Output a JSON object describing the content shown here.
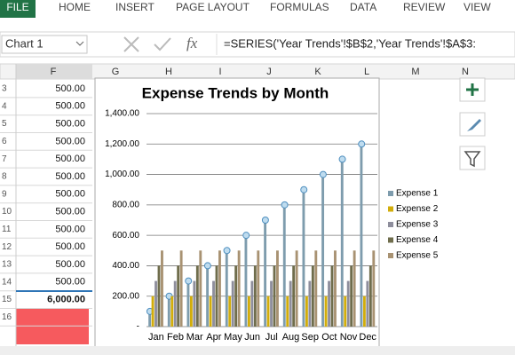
{
  "ribbon_tabs": [
    "FILE",
    "HOME",
    "INSERT",
    "PAGE LAYOUT",
    "FORMULAS",
    "DATA",
    "REVIEW",
    "VIEW"
  ],
  "name_box": "Chart 1",
  "fx": "fx",
  "formula": "=SERIES('Year Trends'!$B$2,'Year Trends'!$A$3:",
  "column_headers": [
    "F",
    "G",
    "H",
    "I",
    "J",
    "K",
    "L",
    "M",
    "N"
  ],
  "rows": [
    {
      "row": "3",
      "F": "500.00"
    },
    {
      "row": "4",
      "F": "500.00"
    },
    {
      "row": "5",
      "F": "500.00"
    },
    {
      "row": "6",
      "F": "500.00"
    },
    {
      "row": "7",
      "F": "500.00"
    },
    {
      "row": "8",
      "F": "500.00"
    },
    {
      "row": "9",
      "F": "500.00"
    },
    {
      "row": "10",
      "F": "500.00"
    },
    {
      "row": "11",
      "F": "500.00"
    },
    {
      "row": "12",
      "F": "500.00"
    },
    {
      "row": "13",
      "F": "500.00"
    },
    {
      "row": "14",
      "F": "500.00"
    },
    {
      "row": "15",
      "F": "6,000.00"
    },
    {
      "row": "16",
      "F": ""
    }
  ],
  "chart_data": {
    "type": "bar",
    "title": "Expense Trends by Month",
    "categories": [
      "Jan",
      "Feb",
      "Mar",
      "Apr",
      "May",
      "Jun",
      "Jul",
      "Aug",
      "Sep",
      "Oct",
      "Nov",
      "Dec"
    ],
    "series": [
      {
        "name": "Expense 1",
        "color": "#7e9cad",
        "values": [
          100,
          200,
          300,
          400,
          500,
          600,
          700,
          800,
          900,
          1000,
          1100,
          1200
        ]
      },
      {
        "name": "Expense 2",
        "color": "#d2ad0a",
        "values": [
          200,
          200,
          200,
          200,
          200,
          200,
          200,
          200,
          200,
          200,
          200,
          200
        ]
      },
      {
        "name": "Expense 3",
        "color": "#8e8e9c",
        "values": [
          300,
          300,
          300,
          300,
          300,
          300,
          300,
          300,
          300,
          300,
          300,
          300
        ]
      },
      {
        "name": "Expense 4",
        "color": "#6f6d4c",
        "values": [
          400,
          400,
          400,
          400,
          400,
          400,
          400,
          400,
          400,
          400,
          400,
          400
        ]
      },
      {
        "name": "Expense 5",
        "color": "#a89272",
        "values": [
          500,
          500,
          500,
          500,
          500,
          500,
          500,
          500,
          500,
          500,
          500,
          500
        ]
      }
    ],
    "ylim": [
      0,
      1400
    ],
    "yticks": [
      {
        "value": 0,
        "label": "-"
      },
      {
        "value": 200,
        "label": "200.00"
      },
      {
        "value": 400,
        "label": "400.00"
      },
      {
        "value": 600,
        "label": "600.00"
      },
      {
        "value": 800,
        "label": "800.00"
      },
      {
        "value": 1000,
        "label": "1,000.00"
      },
      {
        "value": 1200,
        "label": "1,200.00"
      },
      {
        "value": 1400,
        "label": "1,400.00"
      }
    ],
    "grid": true,
    "legend": "right"
  }
}
